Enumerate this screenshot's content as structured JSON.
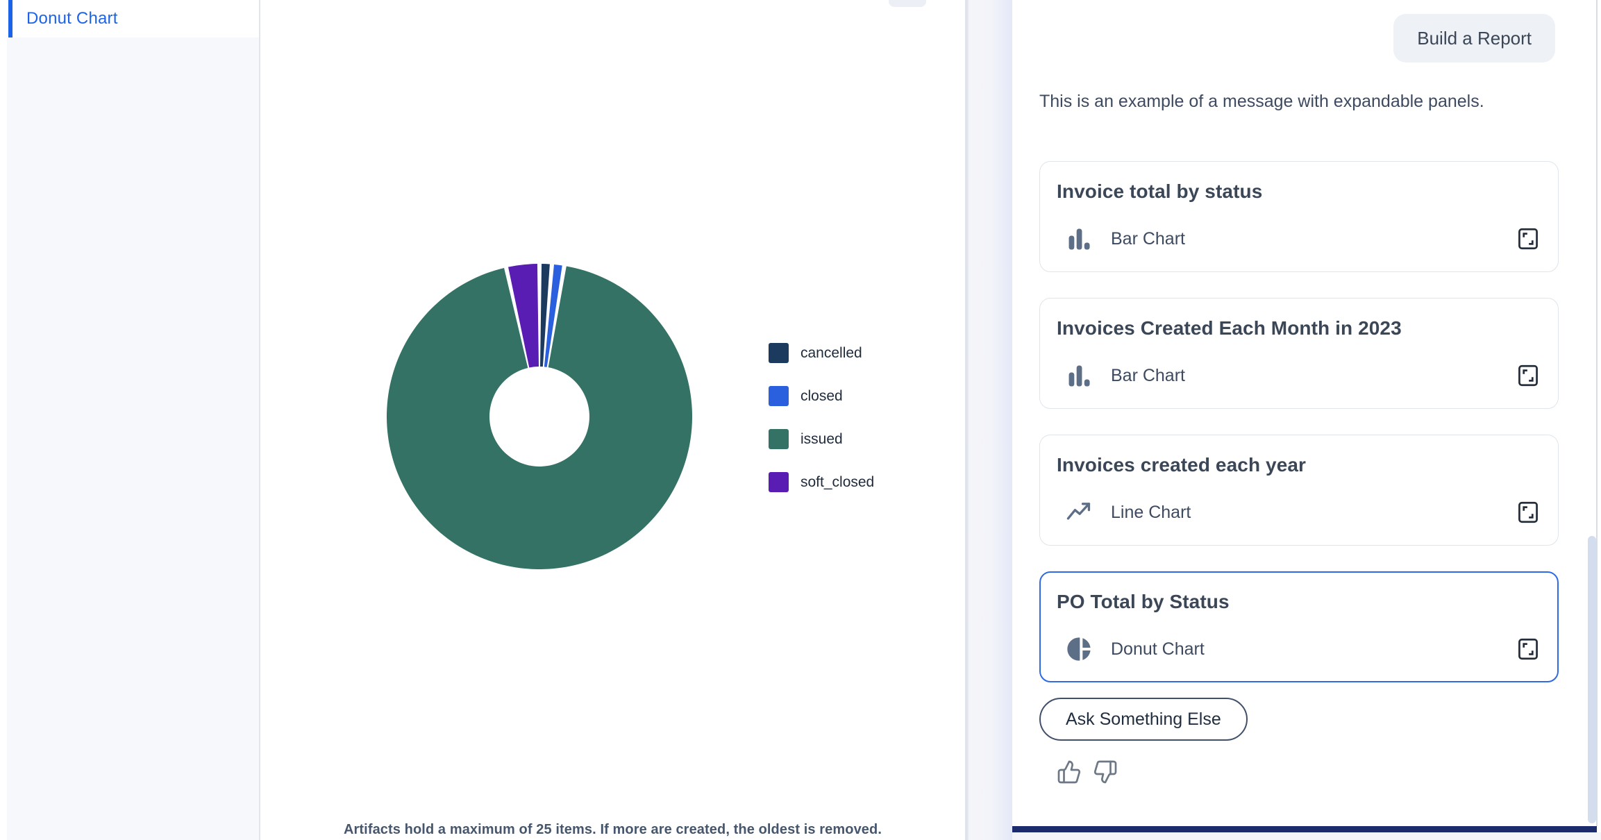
{
  "sidebar": {
    "items": [
      {
        "label": "Donut Chart",
        "active": true
      }
    ]
  },
  "main": {
    "artifact_note": "Artifacts hold a maximum of 25 items. If more are created, the oldest is removed."
  },
  "chart_data": {
    "type": "pie",
    "subtype": "donut",
    "title": "PO Total by Status",
    "labels": [
      "cancelled",
      "closed",
      "issued",
      "soft_closed"
    ],
    "values": [
      1.3,
      1.3,
      93.9,
      3.5
    ],
    "values_note": "estimated percent of total, read from slice angles",
    "colors": [
      "#1b3a5e",
      "#2a5fdd",
      "#337265",
      "#5a1db3"
    ],
    "legend_position": "right",
    "inner_radius_ratio": 0.33,
    "start_angle_deg": 0,
    "pad_angle_deg": 1.6
  },
  "chat": {
    "user_message": "Build a Report",
    "assistant_message": "This is an example of a message with expandable panels.",
    "panels": [
      {
        "title": "Invoice total by status",
        "chart_type": "Bar Chart",
        "icon": "bar-chart-icon",
        "selected": false
      },
      {
        "title": "Invoices Created Each Month in 2023",
        "chart_type": "Bar Chart",
        "icon": "bar-chart-icon",
        "selected": false
      },
      {
        "title": "Invoices created each year",
        "chart_type": "Line Chart",
        "icon": "line-chart-icon",
        "selected": false
      },
      {
        "title": "PO Total by Status",
        "chart_type": "Donut Chart",
        "icon": "donut-chart-icon",
        "selected": true
      }
    ],
    "ask_button_label": "Ask Something Else",
    "feedback_icons": [
      "thumbs-up-icon",
      "thumbs-down-icon"
    ]
  },
  "colors": {
    "accent_blue": "#1d63e8",
    "selected_card_border": "#2e6ae3",
    "icon_slate": "#5d6e87",
    "title_text": "#3b4757",
    "body_text": "#3d4a60",
    "sidebar_bg": "#f7f8fb",
    "user_bubble_bg": "#eef1f6",
    "chat_input_bar": "#1b2b6b",
    "scrollbar_thumb": "#d4ddee"
  }
}
